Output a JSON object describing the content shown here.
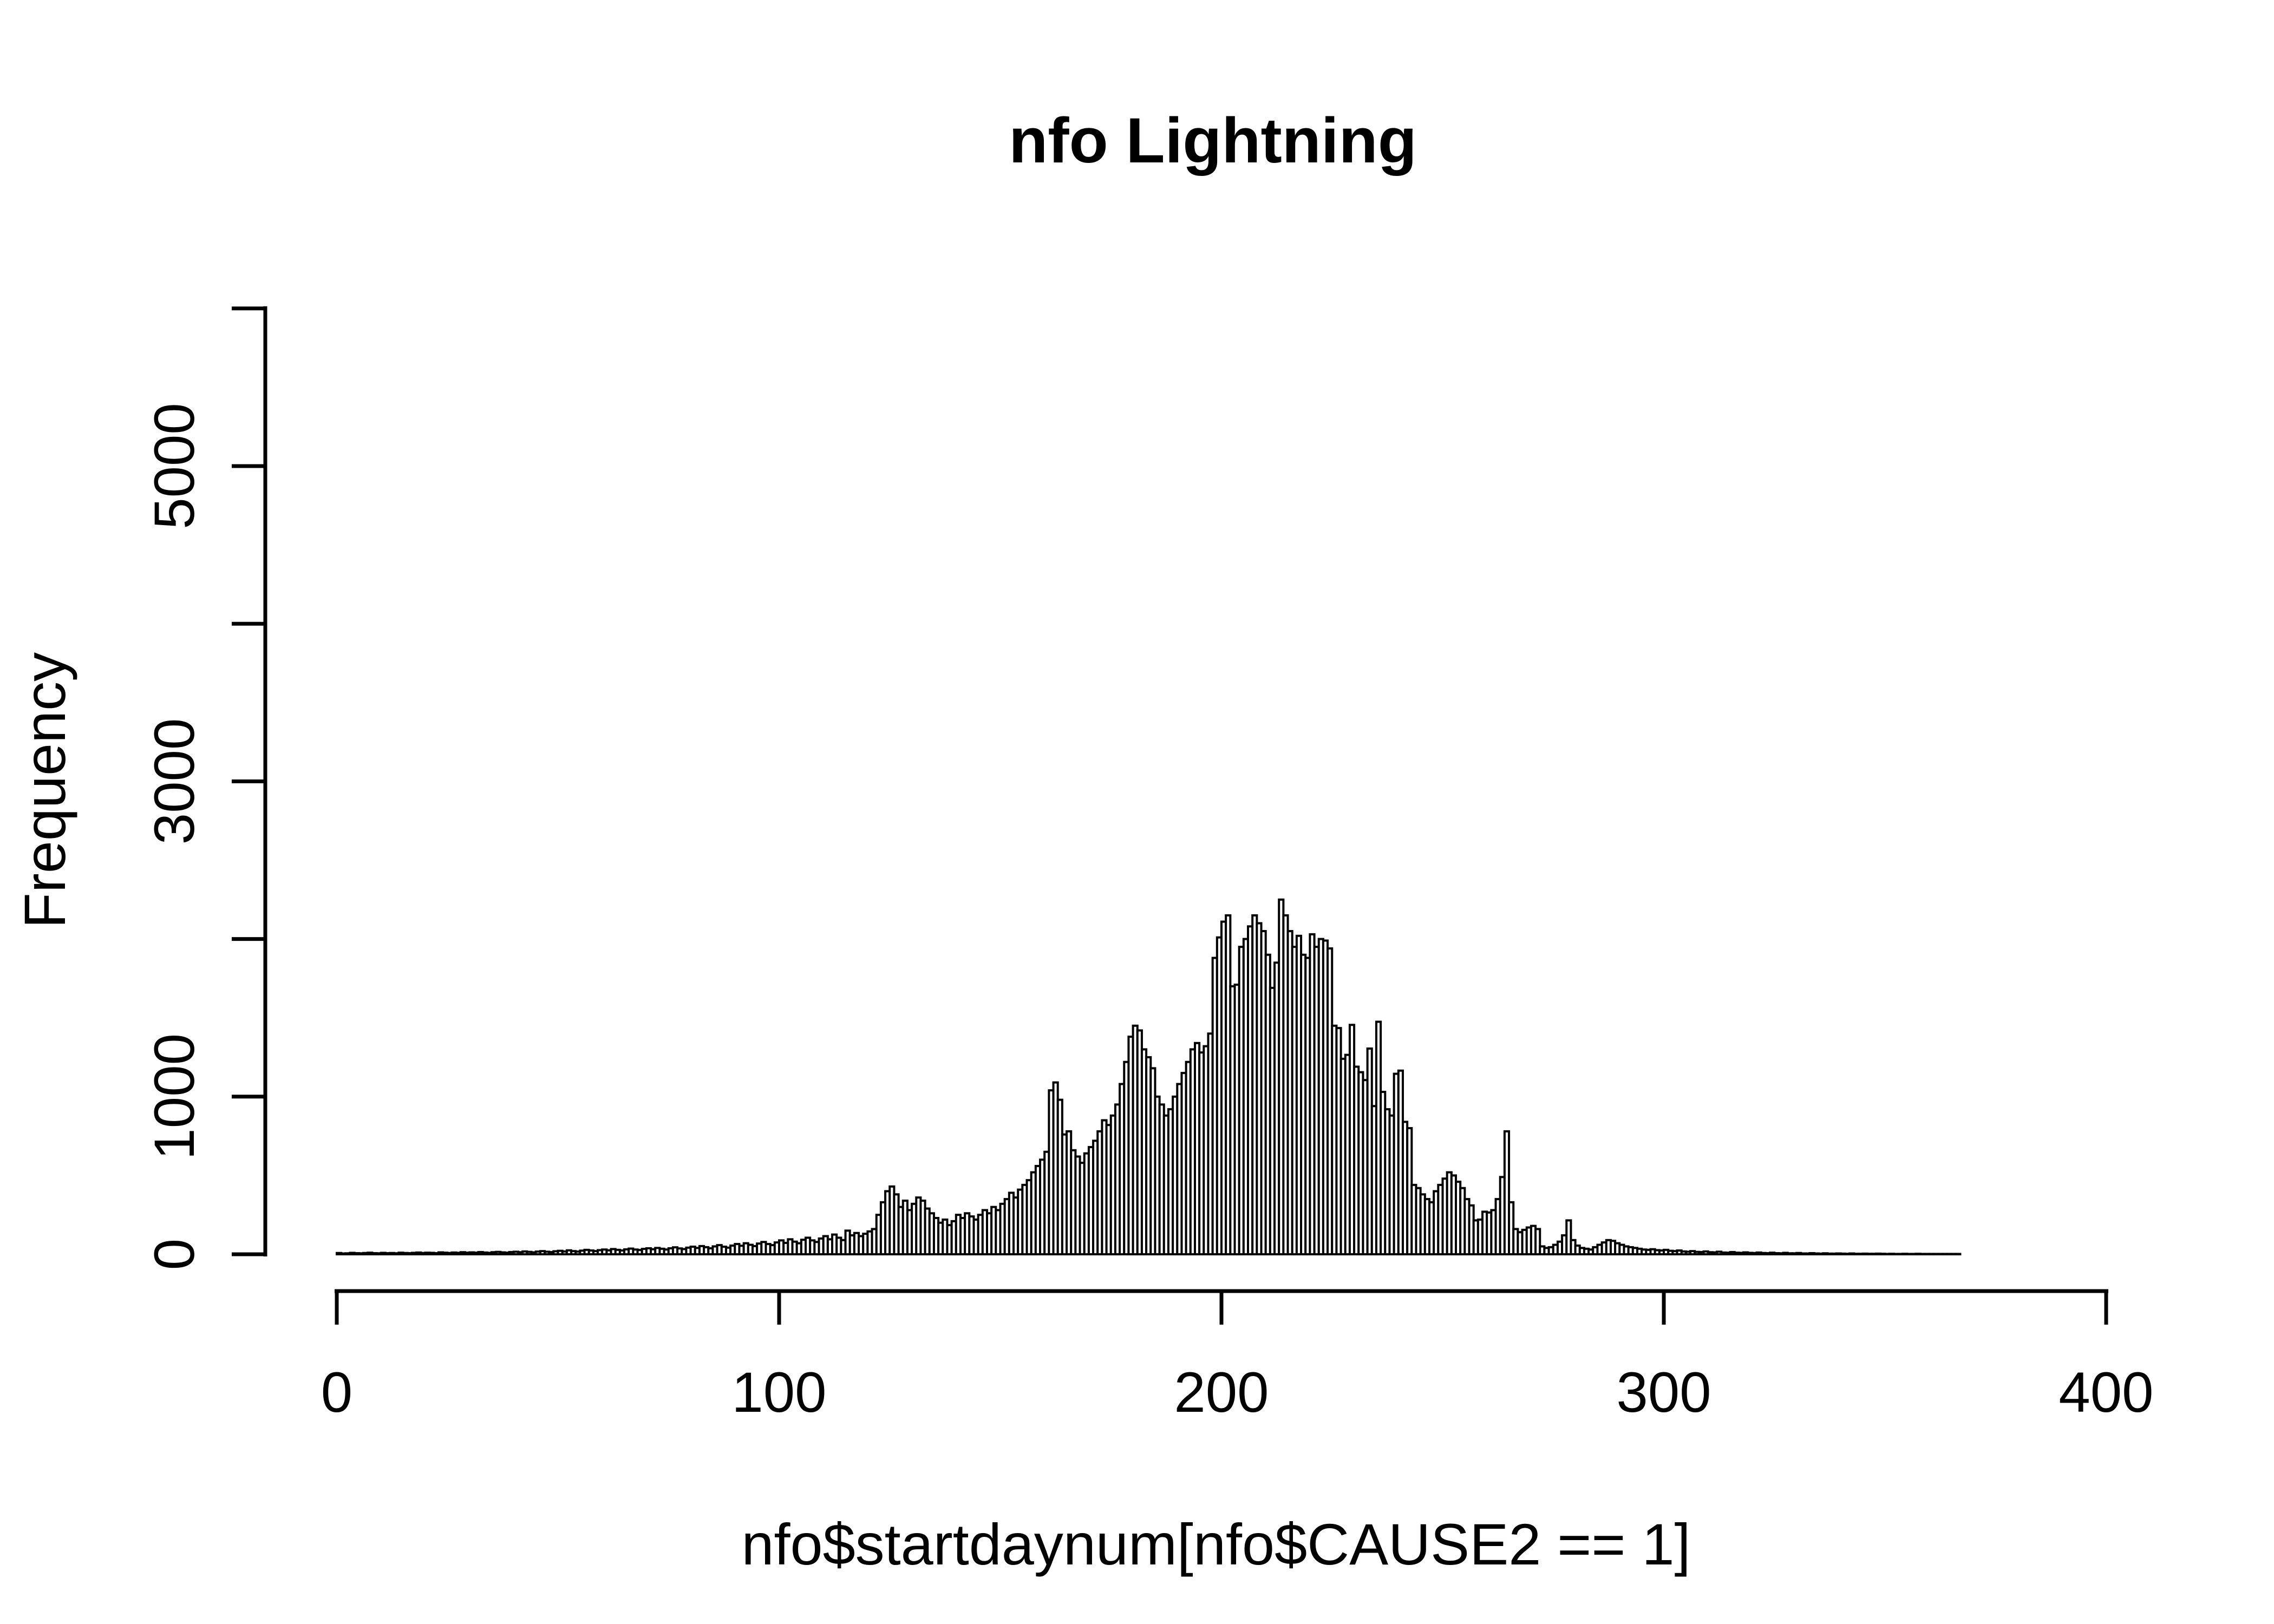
{
  "figure": {
    "background": "#ffffff",
    "foreground": "#000000"
  },
  "chart_data": {
    "type": "bar",
    "subtype": "histogram",
    "title": "nfo Lightning",
    "xlabel": "nfo$startdaynum[nfo$CAUSE2 == 1]",
    "ylabel": "Frequency",
    "bin_start": 0,
    "bin_width": 1,
    "xlim": [
      0,
      400
    ],
    "ylim": [
      0,
      6000
    ],
    "grid": false,
    "legend": false,
    "bar_fill": "#ffffff",
    "bar_stroke": "#000000",
    "x_ticks": [
      0,
      100,
      200,
      300,
      400
    ],
    "x_tick_labels": [
      "0",
      "100",
      "200",
      "300",
      "400"
    ],
    "y_ticks": [
      0,
      1000,
      2000,
      3000,
      4000,
      5000,
      6000
    ],
    "y_tick_labels": [
      "0",
      "1000",
      "",
      "3000",
      "",
      "5000",
      ""
    ],
    "values": [
      8,
      5,
      6,
      9,
      7,
      6,
      8,
      10,
      7,
      6,
      9,
      7,
      8,
      6,
      10,
      8,
      7,
      9,
      11,
      8,
      10,
      9,
      7,
      12,
      10,
      8,
      11,
      9,
      13,
      10,
      12,
      10,
      14,
      11,
      9,
      13,
      15,
      12,
      10,
      14,
      16,
      13,
      18,
      15,
      12,
      17,
      20,
      16,
      14,
      19,
      22,
      18,
      25,
      20,
      17,
      23,
      28,
      24,
      20,
      26,
      30,
      25,
      33,
      28,
      24,
      31,
      36,
      30,
      27,
      34,
      38,
      32,
      40,
      35,
      30,
      38,
      44,
      37,
      33,
      42,
      48,
      40,
      52,
      45,
      38,
      50,
      58,
      48,
      42,
      55,
      65,
      54,
      70,
      60,
      52,
      68,
      78,
      65,
      58,
      75,
      88,
      72,
      95,
      80,
      70,
      92,
      105,
      88,
      78,
      100,
      115,
      95,
      125,
      105,
      90,
      150,
      120,
      135,
      115,
      130,
      145,
      160,
      250,
      330,
      400,
      430,
      380,
      300,
      340,
      280,
      320,
      360,
      340,
      290,
      260,
      230,
      200,
      220,
      185,
      210,
      250,
      230,
      260,
      240,
      220,
      250,
      280,
      260,
      300,
      280,
      320,
      350,
      390,
      360,
      410,
      440,
      470,
      520,
      560,
      600,
      650,
      1040,
      1090,
      980,
      760,
      780,
      660,
      620,
      580,
      640,
      680,
      720,
      780,
      850,
      820,
      880,
      950,
      1080,
      1220,
      1380,
      1450,
      1420,
      1300,
      1250,
      1180,
      1000,
      950,
      880,
      920,
      1000,
      1080,
      1150,
      1220,
      1300,
      1340,
      1280,
      1320,
      1400,
      1880,
      2010,
      2110,
      2150,
      1700,
      1710,
      1950,
      2000,
      2080,
      2150,
      2100,
      2050,
      1900,
      1690,
      1850,
      2250,
      2150,
      2050,
      1950,
      2020,
      1900,
      1880,
      2030,
      1950,
      2000,
      1990,
      1940,
      1450,
      1435,
      1240,
      1265,
      1455,
      1190,
      1155,
      1105,
      1305,
      940,
      1475,
      1030,
      920,
      880,
      1145,
      1165,
      840,
      800,
      440,
      420,
      380,
      350,
      330,
      400,
      440,
      480,
      520,
      500,
      460,
      420,
      350,
      310,
      215,
      220,
      270,
      265,
      280,
      350,
      490,
      780,
      330,
      160,
      140,
      155,
      170,
      180,
      160,
      50,
      40,
      45,
      60,
      80,
      120,
      215,
      90,
      55,
      40,
      35,
      30,
      45,
      60,
      75,
      90,
      85,
      70,
      60,
      50,
      45,
      40,
      35,
      30,
      28,
      32,
      26,
      24,
      28,
      22,
      20,
      24,
      18,
      16,
      20,
      15,
      14,
      18,
      13,
      12,
      16,
      11,
      10,
      14,
      10,
      9,
      12,
      9,
      8,
      11,
      8,
      7,
      10,
      7,
      6,
      9,
      6,
      6,
      8,
      5,
      5,
      7,
      5,
      4,
      6,
      4,
      4,
      5,
      4,
      3,
      5,
      3,
      3,
      4,
      3,
      3,
      4,
      3,
      2,
      3,
      2,
      2,
      3,
      2,
      2,
      3,
      2,
      2,
      2,
      2,
      2,
      2,
      2,
      2,
      2
    ]
  }
}
